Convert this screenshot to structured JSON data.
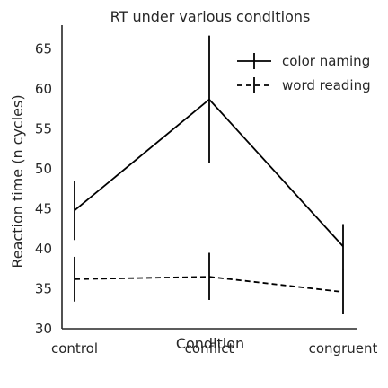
{
  "chart_data": {
    "type": "line",
    "title": "RT under various conditions",
    "xlabel": "Condition",
    "ylabel": "Reaction time (n cycles)",
    "categories": [
      "control",
      "conflict",
      "congruent"
    ],
    "ylim": [
      30,
      68
    ],
    "yticks": [
      30,
      35,
      40,
      45,
      50,
      55,
      60,
      65
    ],
    "grid": false,
    "legend": "top-right",
    "series": [
      {
        "name": "color naming",
        "style": "solid",
        "color": "#000000",
        "values": [
          44.8,
          58.7,
          40.3
        ],
        "err_low": [
          41.1,
          50.7,
          37.4
        ],
        "err_high": [
          48.5,
          66.7,
          43.1
        ]
      },
      {
        "name": "word reading",
        "style": "dashed",
        "color": "#000000",
        "values": [
          36.2,
          36.5,
          34.6
        ],
        "err_low": [
          33.4,
          33.6,
          31.8
        ],
        "err_high": [
          39.0,
          39.5,
          37.5
        ]
      }
    ]
  }
}
